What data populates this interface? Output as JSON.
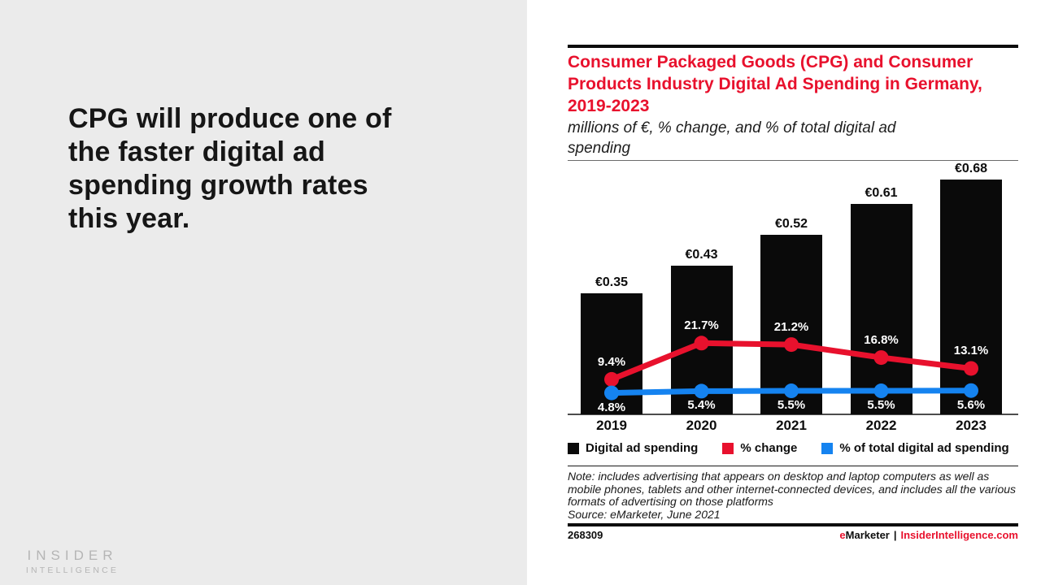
{
  "left_panel": {
    "headline": "CPG will produce one of the faster digital ad spending growth rates this year.",
    "logo": {
      "line1": "INSIDER",
      "line2": "INTELLIGENCE"
    }
  },
  "report": {
    "title": "Consumer Packaged Goods (CPG) and Consumer Products Industry Digital Ad Spending in Germany, 2019-2023",
    "subtitle": "millions of €, % change, and % of total digital ad spending",
    "note": "Note: includes advertising that appears on desktop and laptop computers as well as mobile phones, tablets and other internet-connected devices, and includes all the various formats of advertising on those platforms",
    "source": "Source: eMarketer, June 2021",
    "chart_id": "268309",
    "brand": {
      "e": "e",
      "marketer": "Marketer",
      "separator": "|",
      "site": "InsiderIntelligence.com"
    }
  },
  "colors": {
    "accent_red": "#e8112d",
    "accent_blue": "#1583f0",
    "bar_black": "#0a0a0a",
    "left_bg": "#ebebeb",
    "logo_gray": "#b5b5b5"
  },
  "chart_data": {
    "type": "bar",
    "title": "Consumer Packaged Goods (CPG) and Consumer Products Industry Digital Ad Spending in Germany, 2019-2023",
    "subtitle": "millions of €, % change, and % of total digital ad spending",
    "categories": [
      "2019",
      "2020",
      "2021",
      "2022",
      "2023"
    ],
    "series": [
      {
        "name": "Digital ad spending",
        "type": "bar",
        "color": "#0a0a0a",
        "unit": "millions of €",
        "values": [
          0.35,
          0.43,
          0.52,
          0.61,
          0.68
        ],
        "labels": [
          "€0.35",
          "€0.43",
          "€0.52",
          "€0.61",
          "€0.68"
        ]
      },
      {
        "name": "% change",
        "type": "line",
        "color": "#e8112d",
        "unit": "%",
        "values": [
          9.4,
          21.7,
          21.2,
          16.8,
          13.1
        ],
        "labels": [
          "9.4%",
          "21.7%",
          "21.2%",
          "16.8%",
          "13.1%"
        ]
      },
      {
        "name": "% of total digital ad spending",
        "type": "line",
        "color": "#1583f0",
        "unit": "%",
        "values": [
          4.8,
          5.4,
          5.5,
          5.5,
          5.6
        ],
        "labels": [
          "4.8%",
          "5.4%",
          "5.5%",
          "5.5%",
          "5.6%"
        ]
      }
    ],
    "ylim_bar": [
      0,
      0.73
    ],
    "ylim_pct": [
      0,
      83
    ],
    "grid": false,
    "legend_position": "bottom",
    "xlabel": "",
    "ylabel": ""
  }
}
